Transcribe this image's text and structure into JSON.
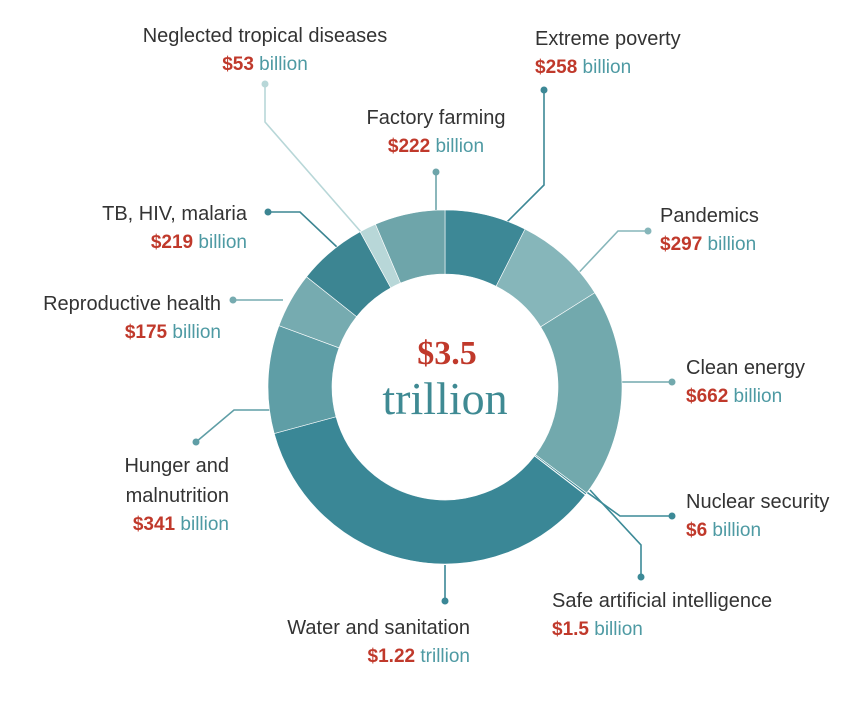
{
  "chart_data": {
    "type": "pie",
    "center": {
      "amount": "$3.5",
      "unit": "trillion"
    },
    "slices": [
      {
        "label": [
          "Extreme poverty"
        ],
        "amount": "$258",
        "unit": "billion",
        "value": 258,
        "color": "#3d8896"
      },
      {
        "label": [
          "Pandemics"
        ],
        "amount": "$297",
        "unit": "billion",
        "value": 297,
        "color": "#86b6ba"
      },
      {
        "label": [
          "Clean energy"
        ],
        "amount": "$662",
        "unit": "billion",
        "value": 662,
        "color": "#72a9ad"
      },
      {
        "label": [
          "Nuclear security"
        ],
        "amount": "$6",
        "unit": "billion",
        "value": 6,
        "color": "#3c8a97"
      },
      {
        "label": [
          "Safe artificial intelligence"
        ],
        "amount": "$1.5",
        "unit": "billion",
        "value": 1.5,
        "color": "#3c8a97"
      },
      {
        "label": [
          "Water and sanitation"
        ],
        "amount": "$1.22",
        "unit": "trillion",
        "value": 1220,
        "color": "#3a8796"
      },
      {
        "label": [
          "Hunger and",
          "malnutrition"
        ],
        "amount": "$341",
        "unit": "billion",
        "value": 341,
        "color": "#5f9ea6"
      },
      {
        "label": [
          "Reproductive health"
        ],
        "amount": "$175",
        "unit": "billion",
        "value": 175,
        "color": "#76abb0"
      },
      {
        "label": [
          "TB, HIV, malaria"
        ],
        "amount": "$219",
        "unit": "billion",
        "value": 219,
        "color": "#3c8592"
      },
      {
        "label": [
          "Neglected tropical diseases"
        ],
        "amount": "$53",
        "unit": "billion",
        "value": 53,
        "color": "#b8d7d8"
      },
      {
        "label": [
          "Factory farming"
        ],
        "amount": "$222",
        "unit": "billion",
        "value": 222,
        "color": "#6ea5aa"
      }
    ]
  }
}
